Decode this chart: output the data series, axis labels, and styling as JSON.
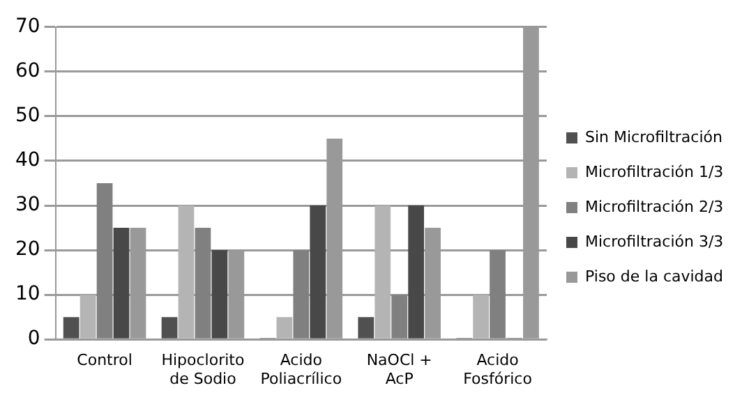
{
  "chart_data": {
    "type": "bar",
    "categories": [
      "Control",
      "Hipoclorito\nde Sodio",
      "Acido\nPoliacrílico",
      "NaOCl +\nAcP",
      "Acido\nFosfórico"
    ],
    "series": [
      {
        "name": "Sin Microfiltración",
        "color": "#505050",
        "values": [
          5,
          5,
          0,
          5,
          0
        ]
      },
      {
        "name": "Microfiltración 1/3",
        "color": "#b4b4b4",
        "values": [
          10,
          30,
          5,
          30,
          10
        ]
      },
      {
        "name": "Microfiltración 2/3",
        "color": "#808080",
        "values": [
          35,
          25,
          20,
          10,
          20
        ]
      },
      {
        "name": "Microfiltración 3/3",
        "color": "#484848",
        "values": [
          25,
          20,
          30,
          30,
          0
        ]
      },
      {
        "name": "Piso de la cavidad",
        "color": "#999999",
        "values": [
          25,
          20,
          45,
          25,
          70
        ]
      }
    ],
    "ylim": [
      0,
      70
    ],
    "yticks": [
      0,
      10,
      20,
      30,
      40,
      50,
      60,
      70
    ],
    "grid": "y",
    "legend": "right"
  }
}
